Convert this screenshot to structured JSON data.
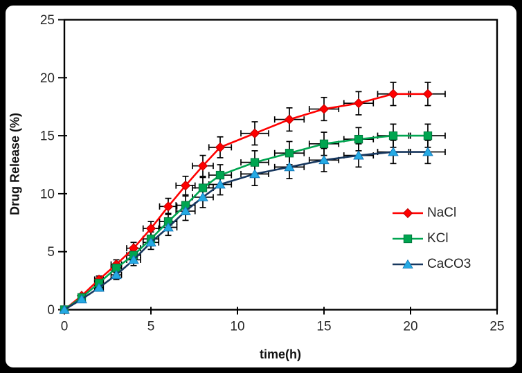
{
  "chart_data": {
    "type": "line",
    "title": "",
    "xlabel": "time(h)",
    "ylabel": "Drug Release (%)",
    "xlim": [
      0,
      25
    ],
    "ylim": [
      0,
      25
    ],
    "xticks": [
      0,
      5,
      10,
      15,
      20,
      25
    ],
    "yticks": [
      0,
      5,
      10,
      15,
      20,
      25
    ],
    "grid": false,
    "legend_position": "inside-right",
    "background_color": "#FFFFFF",
    "frame_color": "#000000",
    "axis_color": "#000000",
    "tick_label_color": "#262626",
    "error_bar_color": "#000000",
    "x": [
      0,
      1,
      2,
      3,
      4,
      5,
      6,
      7,
      8,
      9,
      11,
      13,
      15,
      17,
      19,
      21
    ],
    "x_err": [
      0,
      0,
      0.25,
      0.3,
      0.4,
      0.45,
      0.5,
      0.55,
      0.6,
      0.65,
      0.8,
      0.85,
      0.85,
      0.85,
      0.9,
      1.0
    ],
    "y_err": [
      0,
      0,
      0.3,
      0.4,
      0.5,
      0.6,
      0.7,
      0.8,
      0.9,
      0.9,
      1.0,
      1.0,
      1.0,
      1.0,
      1.0,
      1.0
    ],
    "series": [
      {
        "name": "NaCl",
        "marker": "diamond",
        "marker_color": "#FF0000",
        "marker_edge_color": "#B00000",
        "line_color": "#FF0000",
        "values": [
          0,
          1.2,
          2.6,
          3.9,
          5.3,
          7.0,
          8.9,
          10.7,
          12.4,
          14.0,
          15.2,
          16.4,
          17.3,
          17.8,
          18.6,
          18.6
        ]
      },
      {
        "name": "KCl",
        "marker": "square",
        "marker_color": "#00A550",
        "marker_edge_color": "#00743A",
        "line_color": "#00A550",
        "values": [
          0,
          1.05,
          2.3,
          3.6,
          4.7,
          6.1,
          7.6,
          9.0,
          10.5,
          11.6,
          12.7,
          13.5,
          14.3,
          14.7,
          15.0,
          15.0
        ]
      },
      {
        "name": "CaCO3",
        "marker": "triangle",
        "marker_color": "#25AAE3",
        "marker_edge_color": "#1176B8",
        "line_color": "#17375E",
        "values": [
          0,
          0.9,
          1.9,
          3.0,
          4.3,
          5.8,
          7.1,
          8.5,
          9.7,
          10.8,
          11.7,
          12.3,
          12.9,
          13.3,
          13.6,
          13.6
        ]
      }
    ]
  }
}
